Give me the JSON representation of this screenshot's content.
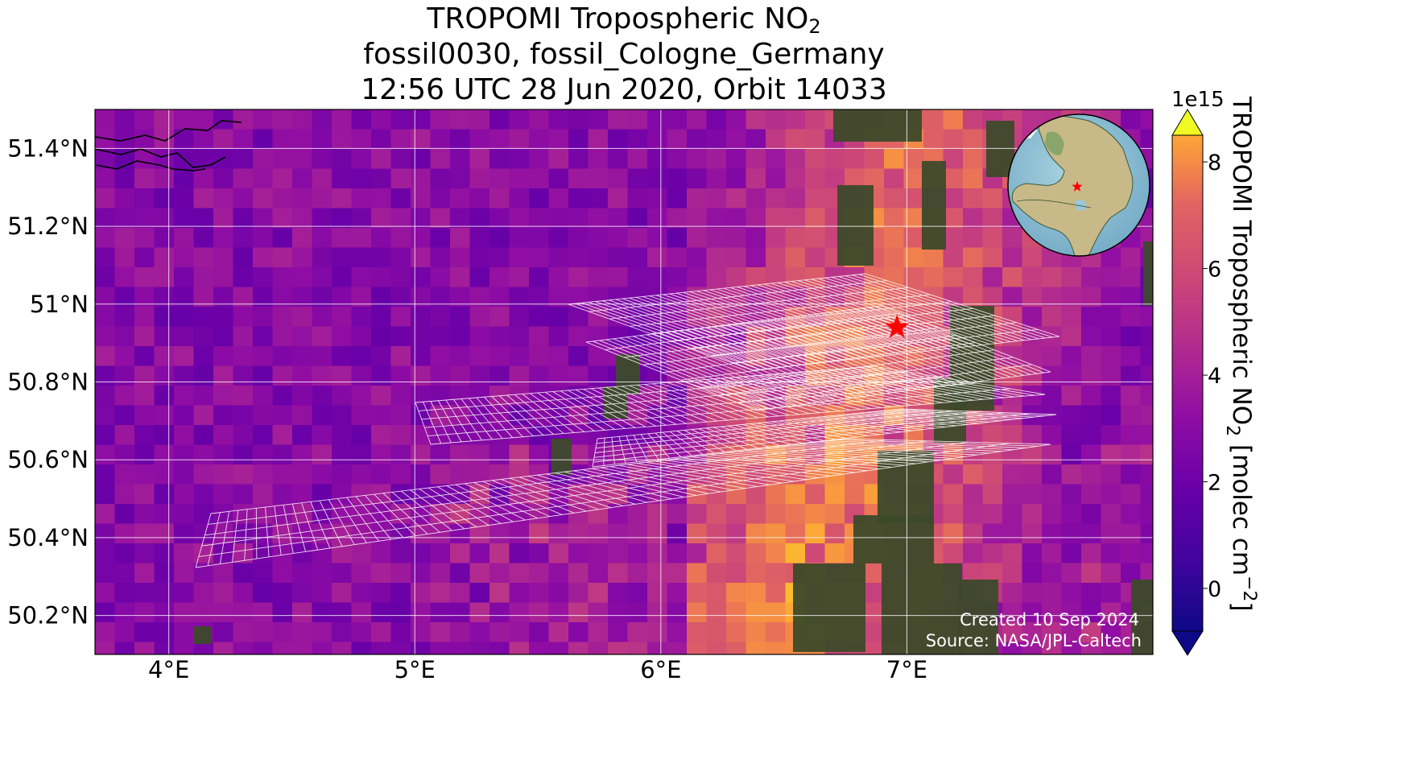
{
  "title": {
    "line1_main": "TROPOMI Tropospheric NO",
    "line1_sub": "2",
    "line2": "fossil0030, fossil_Cologne_Germany",
    "line3": "12:56 UTC 28 Jun 2020, Orbit 14033"
  },
  "map": {
    "lon_range": [
      3.7,
      8.0
    ],
    "lat_range": [
      50.1,
      51.5
    ],
    "lon_ticks": [
      {
        "value": 4,
        "label": "4°E"
      },
      {
        "value": 5,
        "label": "5°E"
      },
      {
        "value": 6,
        "label": "6°E"
      },
      {
        "value": 7,
        "label": "7°E"
      }
    ],
    "lat_ticks": [
      {
        "value": 51.4,
        "label": "51.4°N"
      },
      {
        "value": 51.2,
        "label": "51.2°N"
      },
      {
        "value": 51.0,
        "label": "51°N"
      },
      {
        "value": 50.8,
        "label": "50.8°N"
      },
      {
        "value": 50.6,
        "label": "50.6°N"
      },
      {
        "value": 50.4,
        "label": "50.4°N"
      },
      {
        "value": 50.2,
        "label": "50.2°N"
      }
    ],
    "target": {
      "lon": 6.96,
      "lat": 50.94,
      "marker": "red-star",
      "color": "#ff0000"
    },
    "footer_created": "Created 10 Sep 2024",
    "footer_source": "Source: NASA/JPL-Caltech",
    "grid_color": "#ffffff",
    "inset": {
      "type": "globe",
      "marker": "red-star"
    }
  },
  "colorbar": {
    "colormap": "plasma",
    "range": [
      -0.8,
      8.5
    ],
    "exponent_label": "1e15",
    "ticks": [
      {
        "value": 0,
        "label": "0"
      },
      {
        "value": 2,
        "label": "2"
      },
      {
        "value": 4,
        "label": "4"
      },
      {
        "value": 6,
        "label": "6"
      },
      {
        "value": 8,
        "label": "8"
      }
    ],
    "label_main": "TROPOMI Tropospheric NO",
    "label_sub": "2",
    "label_unit": " [molec cm",
    "label_exp": "−2",
    "label_close": "]"
  }
}
